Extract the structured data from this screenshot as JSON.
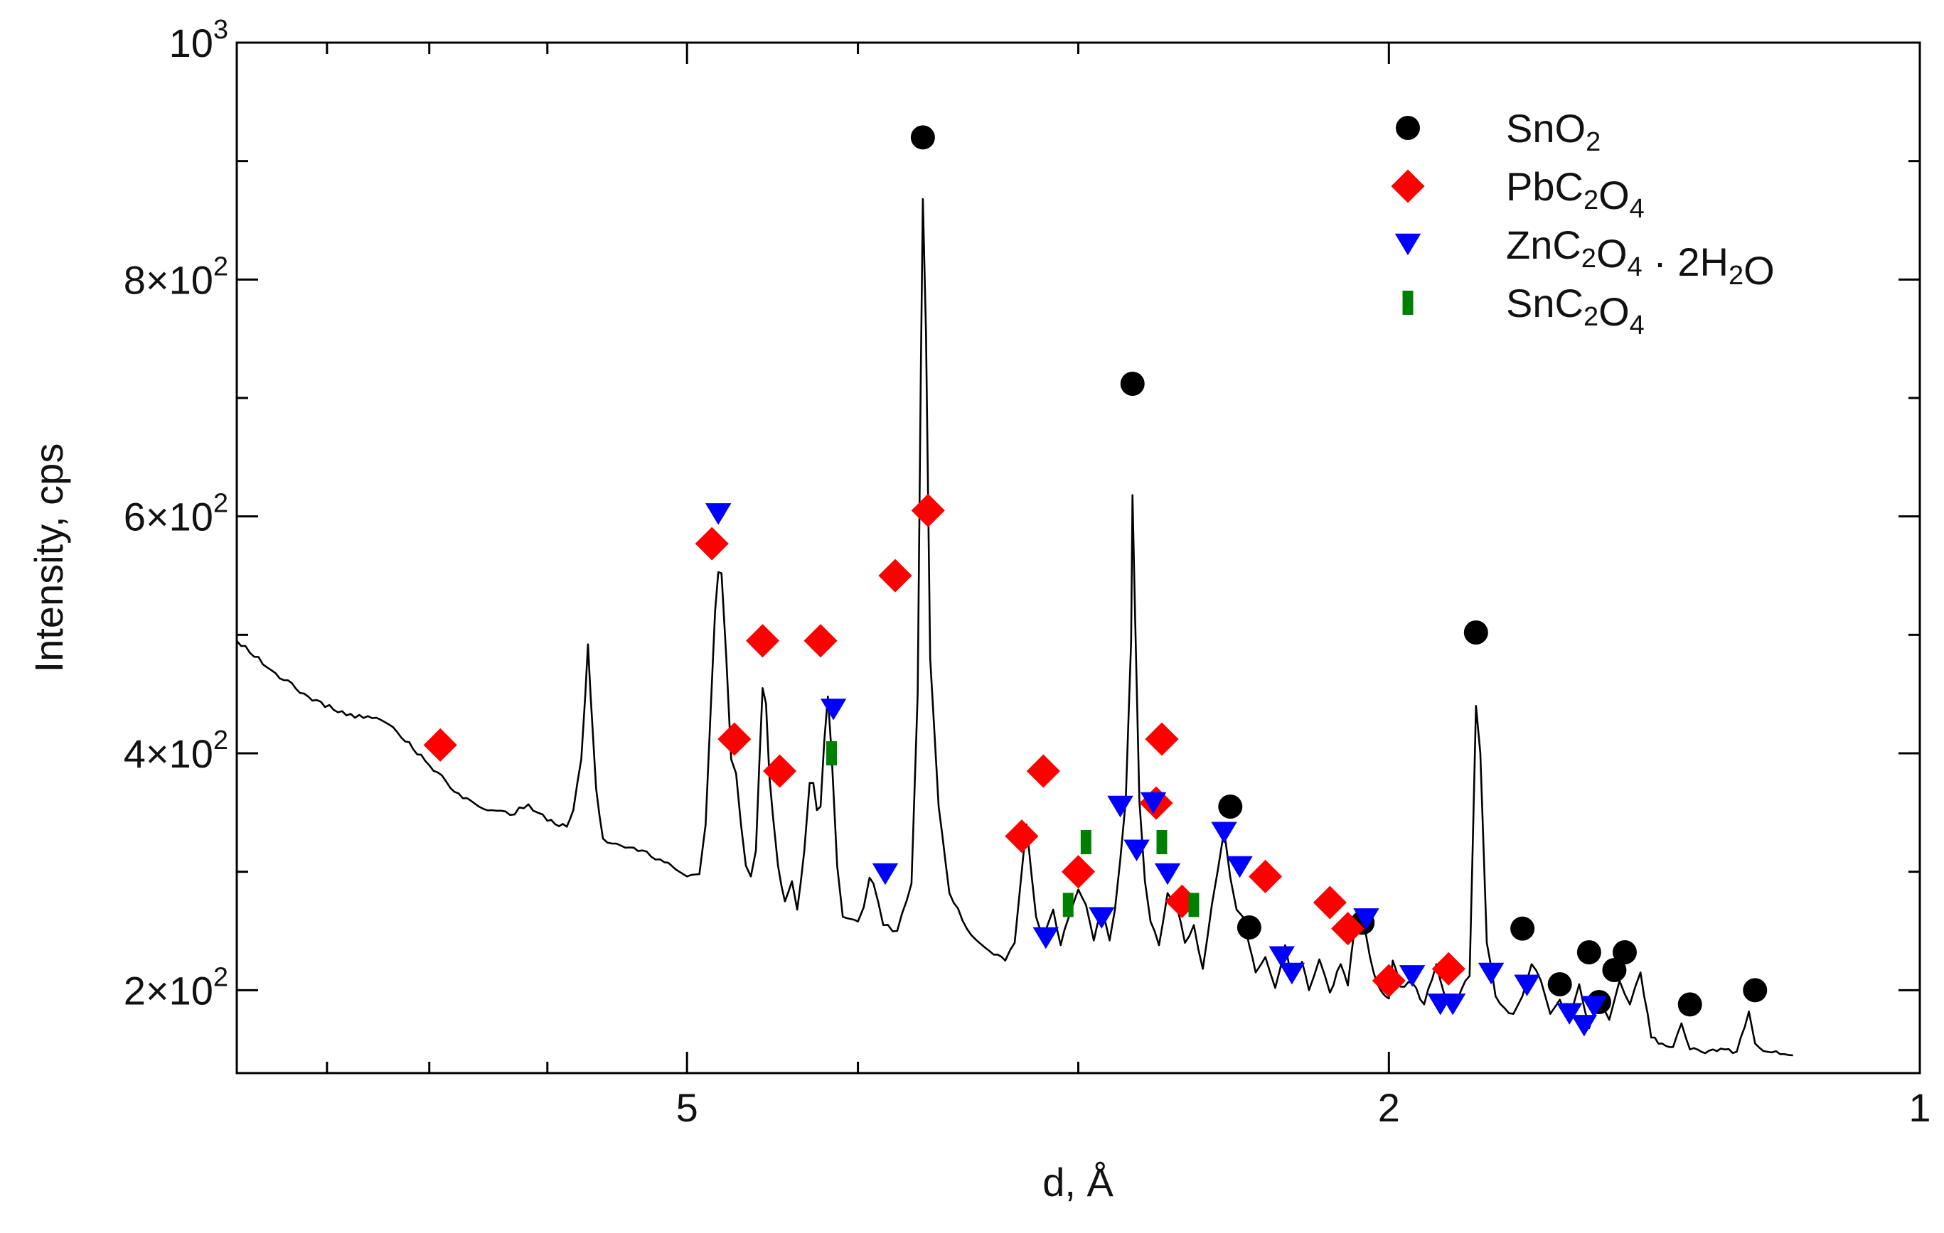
{
  "chart_data": {
    "type": "scatter",
    "title": "",
    "xlabel": "d, Å",
    "ylabel": "Intensity, cps",
    "xscale": "log",
    "xlim_note": "axis runs from large d (left) to small d (right)",
    "xlim": [
      9.0,
      1.0
    ],
    "ylim": [
      130,
      1000
    ],
    "x_ticks": [
      {
        "value": 5,
        "label": "5"
      },
      {
        "value": 2,
        "label": "2"
      },
      {
        "value": 1,
        "label": "1"
      }
    ],
    "y_ticks": [
      {
        "value": 200,
        "base": "2",
        "exp": "2"
      },
      {
        "value": 400,
        "base": "4",
        "exp": "2"
      },
      {
        "value": 600,
        "base": "6",
        "exp": "2"
      },
      {
        "value": 800,
        "base": "8",
        "exp": "2"
      },
      {
        "value": 1000,
        "base": "10",
        "exp": "3"
      }
    ],
    "legend": {
      "placement": "top-right",
      "entries": [
        {
          "key": "sno2",
          "marker": "circle",
          "color": "#000000",
          "parts": [
            {
              "t": "SnO"
            },
            {
              "t": "2",
              "sub": true
            }
          ]
        },
        {
          "key": "pbc2o4",
          "marker": "diamond",
          "color": "#ff0000",
          "parts": [
            {
              "t": "PbC"
            },
            {
              "t": "2",
              "sub": true
            },
            {
              "t": "O"
            },
            {
              "t": "4",
              "sub": true
            }
          ]
        },
        {
          "key": "znc2o4",
          "marker": "triangle-down",
          "color": "#0000ff",
          "parts": [
            {
              "t": "ZnC"
            },
            {
              "t": "2",
              "sub": true
            },
            {
              "t": "O"
            },
            {
              "t": "4",
              "sub": true
            },
            {
              "t": " · 2H"
            },
            {
              "t": "2",
              "sub": true
            },
            {
              "t": "O"
            }
          ]
        },
        {
          "key": "snc2o4",
          "marker": "bar",
          "color": "#008000",
          "parts": [
            {
              "t": "SnC"
            },
            {
              "t": "2",
              "sub": true
            },
            {
              "t": "O"
            },
            {
              "t": "4",
              "sub": true
            }
          ]
        }
      ]
    },
    "spectrum": {
      "name": "XRD pattern",
      "color": "#000000",
      "points": [
        [
          9.0,
          495
        ],
        [
          8.6,
          470
        ],
        [
          8.2,
          448
        ],
        [
          7.8,
          432
        ],
        [
          7.5,
          430
        ],
        [
          7.3,
          418
        ],
        [
          7.0,
          390
        ],
        [
          6.7,
          362
        ],
        [
          6.45,
          352
        ],
        [
          6.3,
          348
        ],
        [
          6.15,
          357
        ],
        [
          6.0,
          343
        ],
        [
          5.85,
          338
        ],
        [
          5.8,
          352
        ],
        [
          5.74,
          395
        ],
        [
          5.71,
          450
        ],
        [
          5.69,
          492
        ],
        [
          5.67,
          448
        ],
        [
          5.63,
          370
        ],
        [
          5.58,
          328
        ],
        [
          5.45,
          322
        ],
        [
          5.3,
          318
        ],
        [
          5.15,
          308
        ],
        [
          5.05,
          300
        ],
        [
          5.0,
          296
        ],
        [
          4.92,
          298
        ],
        [
          4.88,
          340
        ],
        [
          4.85,
          430
        ],
        [
          4.82,
          520
        ],
        [
          4.8,
          553
        ],
        [
          4.78,
          552
        ],
        [
          4.75,
          480
        ],
        [
          4.72,
          395
        ],
        [
          4.69,
          383
        ],
        [
          4.66,
          340
        ],
        [
          4.63,
          305
        ],
        [
          4.6,
          296
        ],
        [
          4.57,
          318
        ],
        [
          4.55,
          390
        ],
        [
          4.53,
          455
        ],
        [
          4.51,
          442
        ],
        [
          4.49,
          380
        ],
        [
          4.47,
          348
        ],
        [
          4.44,
          305
        ],
        [
          4.4,
          275
        ],
        [
          4.36,
          292
        ],
        [
          4.33,
          268
        ],
        [
          4.29,
          318
        ],
        [
          4.26,
          375
        ],
        [
          4.24,
          375
        ],
        [
          4.22,
          352
        ],
        [
          4.2,
          355
        ],
        [
          4.18,
          410
        ],
        [
          4.16,
          448
        ],
        [
          4.14,
          400
        ],
        [
          4.11,
          305
        ],
        [
          4.08,
          262
        ],
        [
          4.0,
          258
        ],
        [
          3.97,
          270
        ],
        [
          3.94,
          295
        ],
        [
          3.92,
          290
        ],
        [
          3.87,
          255
        ],
        [
          3.8,
          250
        ],
        [
          3.73,
          290
        ],
        [
          3.7,
          450
        ],
        [
          3.685,
          720
        ],
        [
          3.675,
          868
        ],
        [
          3.66,
          755
        ],
        [
          3.64,
          480
        ],
        [
          3.6,
          355
        ],
        [
          3.55,
          282
        ],
        [
          3.47,
          252
        ],
        [
          3.35,
          230
        ],
        [
          3.3,
          225
        ],
        [
          3.26,
          240
        ],
        [
          3.23,
          300
        ],
        [
          3.21,
          340
        ],
        [
          3.19,
          300
        ],
        [
          3.17,
          262
        ],
        [
          3.14,
          245
        ],
        [
          3.1,
          268
        ],
        [
          3.07,
          238
        ],
        [
          3.04,
          260
        ],
        [
          3.0,
          285
        ],
        [
          2.97,
          272
        ],
        [
          2.94,
          242
        ],
        [
          2.91,
          268
        ],
        [
          2.88,
          242
        ],
        [
          2.86,
          268
        ],
        [
          2.84,
          310
        ],
        [
          2.82,
          360
        ],
        [
          2.8,
          495
        ],
        [
          2.795,
          618
        ],
        [
          2.785,
          510
        ],
        [
          2.77,
          360
        ],
        [
          2.75,
          292
        ],
        [
          2.73,
          258
        ],
        [
          2.7,
          238
        ],
        [
          2.67,
          282
        ],
        [
          2.64,
          272
        ],
        [
          2.61,
          240
        ],
        [
          2.58,
          255
        ],
        [
          2.55,
          218
        ],
        [
          2.52,
          272
        ],
        [
          2.5,
          302
        ],
        [
          2.48,
          335
        ],
        [
          2.46,
          295
        ],
        [
          2.44,
          268
        ],
        [
          2.42,
          262
        ],
        [
          2.4,
          238
        ],
        [
          2.38,
          215
        ],
        [
          2.35,
          228
        ],
        [
          2.32,
          202
        ],
        [
          2.29,
          238
        ],
        [
          2.27,
          208
        ],
        [
          2.24,
          224
        ],
        [
          2.22,
          200
        ],
        [
          2.19,
          226
        ],
        [
          2.16,
          198
        ],
        [
          2.13,
          222
        ],
        [
          2.11,
          204
        ],
        [
          2.09,
          255
        ],
        [
          2.07,
          262
        ],
        [
          2.05,
          228
        ],
        [
          2.03,
          205
        ],
        [
          2.0,
          193
        ],
        [
          1.99,
          225
        ],
        [
          1.97,
          203
        ],
        [
          1.94,
          206
        ],
        [
          1.91,
          188
        ],
        [
          1.88,
          222
        ],
        [
          1.86,
          196
        ],
        [
          1.84,
          185
        ],
        [
          1.82,
          200
        ],
        [
          1.8,
          212
        ],
        [
          1.785,
          440
        ],
        [
          1.775,
          400
        ],
        [
          1.76,
          240
        ],
        [
          1.74,
          195
        ],
        [
          1.72,
          185
        ],
        [
          1.7,
          180
        ],
        [
          1.68,
          195
        ],
        [
          1.66,
          222
        ],
        [
          1.64,
          208
        ],
        [
          1.62,
          180
        ],
        [
          1.6,
          192
        ],
        [
          1.58,
          175
        ],
        [
          1.56,
          205
        ],
        [
          1.54,
          168
        ],
        [
          1.52,
          196
        ],
        [
          1.5,
          175
        ],
        [
          1.48,
          208
        ],
        [
          1.46,
          188
        ],
        [
          1.44,
          215
        ],
        [
          1.42,
          160
        ],
        [
          1.4,
          155
        ],
        [
          1.38,
          152
        ],
        [
          1.365,
          172
        ],
        [
          1.35,
          150
        ],
        [
          1.33,
          148
        ],
        [
          1.31,
          150
        ],
        [
          1.29,
          150
        ],
        [
          1.27,
          148
        ],
        [
          1.25,
          182
        ],
        [
          1.24,
          155
        ],
        [
          1.22,
          148
        ],
        [
          1.2,
          146
        ],
        [
          1.18,
          145
        ]
      ]
    },
    "series": [
      {
        "name": "SnO2",
        "marker": "circle",
        "color": "#000000",
        "points": [
          [
            3.675,
            920
          ],
          [
            2.795,
            712
          ],
          [
            2.46,
            355
          ],
          [
            2.4,
            253
          ],
          [
            2.07,
            257
          ],
          [
            1.785,
            502
          ],
          [
            1.68,
            252
          ],
          [
            1.6,
            205
          ],
          [
            1.54,
            232
          ],
          [
            1.52,
            190
          ],
          [
            1.49,
            217
          ],
          [
            1.47,
            232
          ],
          [
            1.35,
            188
          ],
          [
            1.24,
            200
          ]
        ]
      },
      {
        "name": "PbC2O4",
        "marker": "diamond",
        "color": "#ff0000",
        "points": [
          [
            6.9,
            407
          ],
          [
            4.84,
            577
          ],
          [
            4.7,
            412
          ],
          [
            4.53,
            495
          ],
          [
            4.43,
            385
          ],
          [
            4.2,
            495
          ],
          [
            3.81,
            550
          ],
          [
            3.65,
            605
          ],
          [
            3.23,
            330
          ],
          [
            3.14,
            385
          ],
          [
            3.0,
            300
          ],
          [
            2.71,
            358
          ],
          [
            2.69,
            412
          ],
          [
            2.62,
            275
          ],
          [
            2.35,
            296
          ],
          [
            2.16,
            274
          ],
          [
            2.11,
            252
          ],
          [
            2.0,
            208
          ],
          [
            1.85,
            218
          ]
        ]
      },
      {
        "name": "ZnC2O4·2H2O",
        "marker": "triangle-down",
        "color": "#0000ff",
        "points": [
          [
            4.8,
            602
          ],
          [
            4.13,
            437
          ],
          [
            3.86,
            298
          ],
          [
            3.13,
            244
          ],
          [
            2.91,
            261
          ],
          [
            2.84,
            355
          ],
          [
            2.78,
            318
          ],
          [
            2.72,
            358
          ],
          [
            2.67,
            298
          ],
          [
            2.48,
            333
          ],
          [
            2.43,
            304
          ],
          [
            2.3,
            228
          ],
          [
            2.27,
            214
          ],
          [
            2.06,
            260
          ],
          [
            1.94,
            212
          ],
          [
            1.87,
            188
          ],
          [
            1.84,
            188
          ],
          [
            1.75,
            214
          ],
          [
            1.67,
            204
          ],
          [
            1.58,
            180
          ],
          [
            1.55,
            170
          ],
          [
            1.53,
            186
          ]
        ]
      },
      {
        "name": "SnC2O4",
        "marker": "bar",
        "color": "#008000",
        "points": [
          [
            4.14,
            400
          ],
          [
            3.04,
            272
          ],
          [
            2.97,
            325
          ],
          [
            2.69,
            325
          ],
          [
            2.58,
            272
          ]
        ]
      }
    ]
  }
}
